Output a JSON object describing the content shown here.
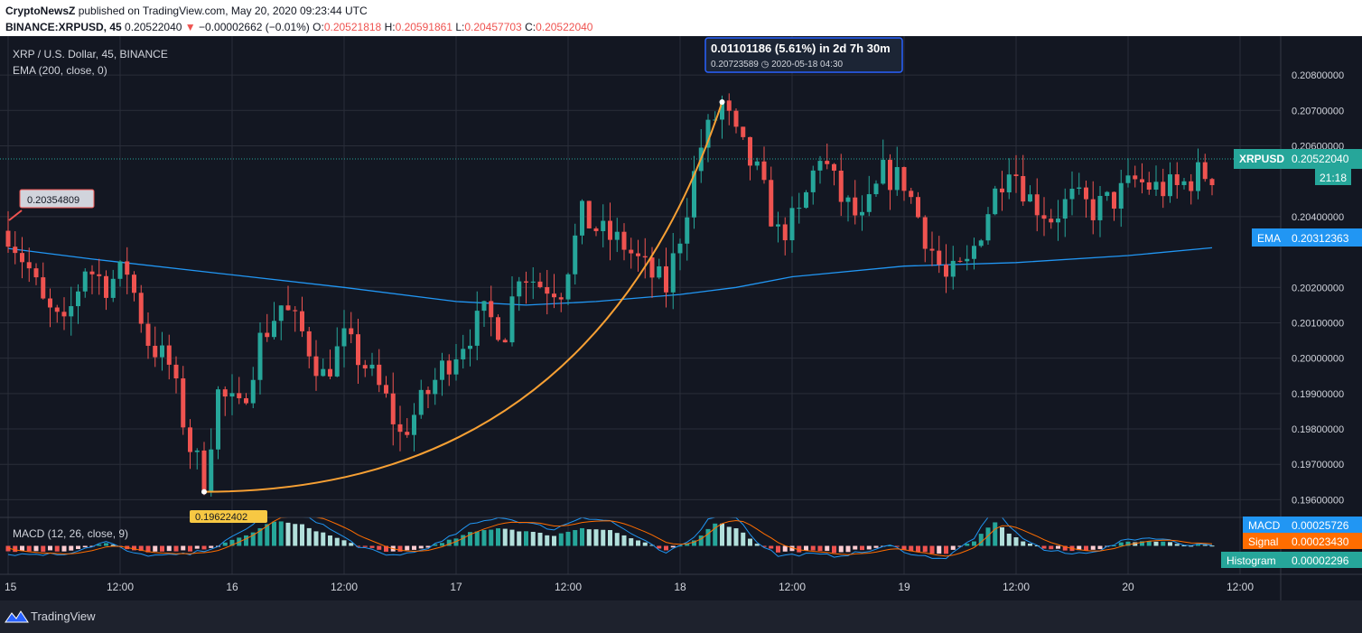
{
  "header": {
    "publisher": "CryptoNewsZ",
    "published_text": "published on TradingView.com, May 20, 2020 09:23:44 UTC",
    "symbol_line": "BINANCE:XRPUSD, 45",
    "last_price": "0.20522040",
    "change_arrow": "▼",
    "change": "−0.00002662 (−0.01%)",
    "o_label": "O:",
    "o_value": "0.20521818",
    "h_label": "H:",
    "h_value": "0.20591861",
    "l_label": "L:",
    "l_value": "0.20457703",
    "c_label": "C:",
    "c_value": "0.20522040"
  },
  "legend": {
    "title": "XRP / U.S. Dollar, 45, BINANCE",
    "ema": "EMA (200, close, 0)",
    "macd": "MACD (12, 26, close, 9)"
  },
  "badges": {
    "symbol_name": "XRPUSD",
    "symbol_price": "0.20522040",
    "countdown": "21:18",
    "ema_name": "EMA",
    "ema_value": "0.20312363",
    "macd_name": "MACD",
    "macd_value": "0.00025726",
    "signal_name": "Signal",
    "signal_value": "0.00023430",
    "hist_name": "Histogram",
    "hist_value": "0.00002296"
  },
  "annotations": {
    "start_price": "0.20354809",
    "low_price": "0.19622402",
    "measure_main": "0.01101186 (5.61%) in 2d 7h 30m",
    "measure_sub": "0.20723589 ◷ 2020-05-18  04:30"
  },
  "footer": {
    "brand": "TradingView"
  },
  "colors": {
    "background": "#131722",
    "grid": "#2a2e39",
    "up": "#26a69a",
    "down": "#ef5350",
    "ema": "#2196f3",
    "macd": "#2196f3",
    "signal": "#ff6d00",
    "trendline": "#f7a034",
    "measure": "#2962ff"
  },
  "chart_data": {
    "type": "candlestick",
    "title": "XRP / U.S. Dollar, 45, BINANCE",
    "price_axis": {
      "ylim": [
        0.1955,
        0.2091
      ],
      "ticks": [
        "0.20800000",
        "0.20700000",
        "0.20600000",
        "0.20400000",
        "0.20200000",
        "0.20100000",
        "0.20000000",
        "0.19900000",
        "0.19800000",
        "0.19700000",
        "0.19600000"
      ],
      "tick_values": [
        0.208,
        0.207,
        0.206,
        0.204,
        0.202,
        0.201,
        0.2,
        0.199,
        0.198,
        0.197,
        0.196
      ]
    },
    "time_axis": {
      "labels": [
        "15",
        "12:00",
        "16",
        "12:00",
        "17",
        "12:00",
        "18",
        "12:00",
        "19",
        "12:00",
        "20",
        "12:00"
      ],
      "label_bars": [
        0,
        16,
        32,
        48,
        64,
        80,
        96,
        112,
        128,
        144,
        160,
        176
      ]
    },
    "candle_anchors": [
      [
        0,
        0.2036
      ],
      [
        3,
        0.2025
      ],
      [
        5,
        0.2015
      ],
      [
        8,
        0.2008
      ],
      [
        11,
        0.2026
      ],
      [
        14,
        0.2021
      ],
      [
        17,
        0.2025
      ],
      [
        20,
        0.2005
      ],
      [
        23,
        0.1998
      ],
      [
        26,
        0.1975
      ],
      [
        28,
        0.1966
      ],
      [
        30,
        0.199
      ],
      [
        33,
        0.1985
      ],
      [
        36,
        0.2005
      ],
      [
        39,
        0.2015
      ],
      [
        42,
        0.2007
      ],
      [
        45,
        0.1995
      ],
      [
        48,
        0.2005
      ],
      [
        51,
        0.1998
      ],
      [
        54,
        0.1988
      ],
      [
        56,
        0.1978
      ],
      [
        59,
        0.1987
      ],
      [
        62,
        0.1997
      ],
      [
        65,
        0.2005
      ],
      [
        68,
        0.2012
      ],
      [
        71,
        0.2008
      ],
      [
        73,
        0.2025
      ],
      [
        76,
        0.2021
      ],
      [
        79,
        0.202
      ],
      [
        82,
        0.204
      ],
      [
        85,
        0.2035
      ],
      [
        88,
        0.2032
      ],
      [
        91,
        0.2025
      ],
      [
        94,
        0.202
      ],
      [
        96,
        0.2035
      ],
      [
        99,
        0.206
      ],
      [
        102,
        0.2072
      ],
      [
        104,
        0.2062
      ],
      [
        107,
        0.2052
      ],
      [
        110,
        0.2035
      ],
      [
        113,
        0.204
      ],
      [
        116,
        0.2058
      ],
      [
        119,
        0.2045
      ],
      [
        122,
        0.2038
      ],
      [
        125,
        0.2052
      ],
      [
        128,
        0.205
      ],
      [
        131,
        0.2035
      ],
      [
        134,
        0.2022
      ],
      [
        137,
        0.2026
      ],
      [
        140,
        0.2042
      ],
      [
        143,
        0.2056
      ],
      [
        146,
        0.2045
      ],
      [
        149,
        0.204
      ],
      [
        152,
        0.2045
      ],
      [
        155,
        0.2042
      ],
      [
        158,
        0.2045
      ],
      [
        161,
        0.205
      ],
      [
        164,
        0.2048
      ],
      [
        167,
        0.2048
      ],
      [
        170,
        0.2052
      ],
      [
        172,
        0.2052
      ]
    ],
    "ema_200": {
      "name": "EMA",
      "points": [
        [
          0,
          0.2031
        ],
        [
          12,
          0.2028
        ],
        [
          30,
          0.2024
        ],
        [
          48,
          0.202
        ],
        [
          64,
          0.2016
        ],
        [
          74,
          0.2015
        ],
        [
          84,
          0.2016
        ],
        [
          96,
          0.2018
        ],
        [
          104,
          0.202
        ],
        [
          112,
          0.2023
        ],
        [
          128,
          0.2026
        ],
        [
          144,
          0.2027
        ],
        [
          160,
          0.2029
        ],
        [
          172,
          0.20312
        ]
      ]
    },
    "trendline": {
      "from": [
        28,
        0.19622402
      ],
      "to": [
        102,
        0.20723589
      ]
    },
    "macd": {
      "range": [
        -0.00055,
        0.00055
      ],
      "histogram_anchors": [
        [
          0,
          -0.0001
        ],
        [
          8,
          -0.0001
        ],
        [
          14,
          5e-05
        ],
        [
          18,
          -0.0001
        ],
        [
          22,
          -0.00012
        ],
        [
          26,
          -0.0001
        ],
        [
          30,
          0.0
        ],
        [
          34,
          0.0002
        ],
        [
          38,
          0.00048
        ],
        [
          42,
          0.0004
        ],
        [
          46,
          0.0002
        ],
        [
          50,
          0.0
        ],
        [
          54,
          -0.00012
        ],
        [
          58,
          -8e-05
        ],
        [
          62,
          5e-05
        ],
        [
          66,
          0.00025
        ],
        [
          70,
          0.00035
        ],
        [
          74,
          0.00028
        ],
        [
          78,
          0.0002
        ],
        [
          82,
          0.00035
        ],
        [
          86,
          0.0003
        ],
        [
          90,
          0.0001
        ],
        [
          94,
          -0.0001
        ],
        [
          98,
          0.0001
        ],
        [
          101,
          0.00045
        ],
        [
          104,
          0.00035
        ],
        [
          107,
          5e-05
        ],
        [
          110,
          -0.00012
        ],
        [
          114,
          -0.0001
        ],
        [
          118,
          -0.00012
        ],
        [
          122,
          -8e-05
        ],
        [
          126,
          0.0
        ],
        [
          130,
          -0.00012
        ],
        [
          134,
          -0.00015
        ],
        [
          138,
          0.0001
        ],
        [
          141,
          0.00045
        ],
        [
          144,
          0.00015
        ],
        [
          148,
          -5e-05
        ],
        [
          152,
          -0.0001
        ],
        [
          156,
          -5e-05
        ],
        [
          160,
          8e-05
        ],
        [
          164,
          0.0001
        ],
        [
          168,
          2e-05
        ],
        [
          172,
          2e-05
        ]
      ],
      "macd_value": 0.00025726,
      "signal_value": 0.0002343,
      "histogram_value": 2.296e-05
    }
  }
}
